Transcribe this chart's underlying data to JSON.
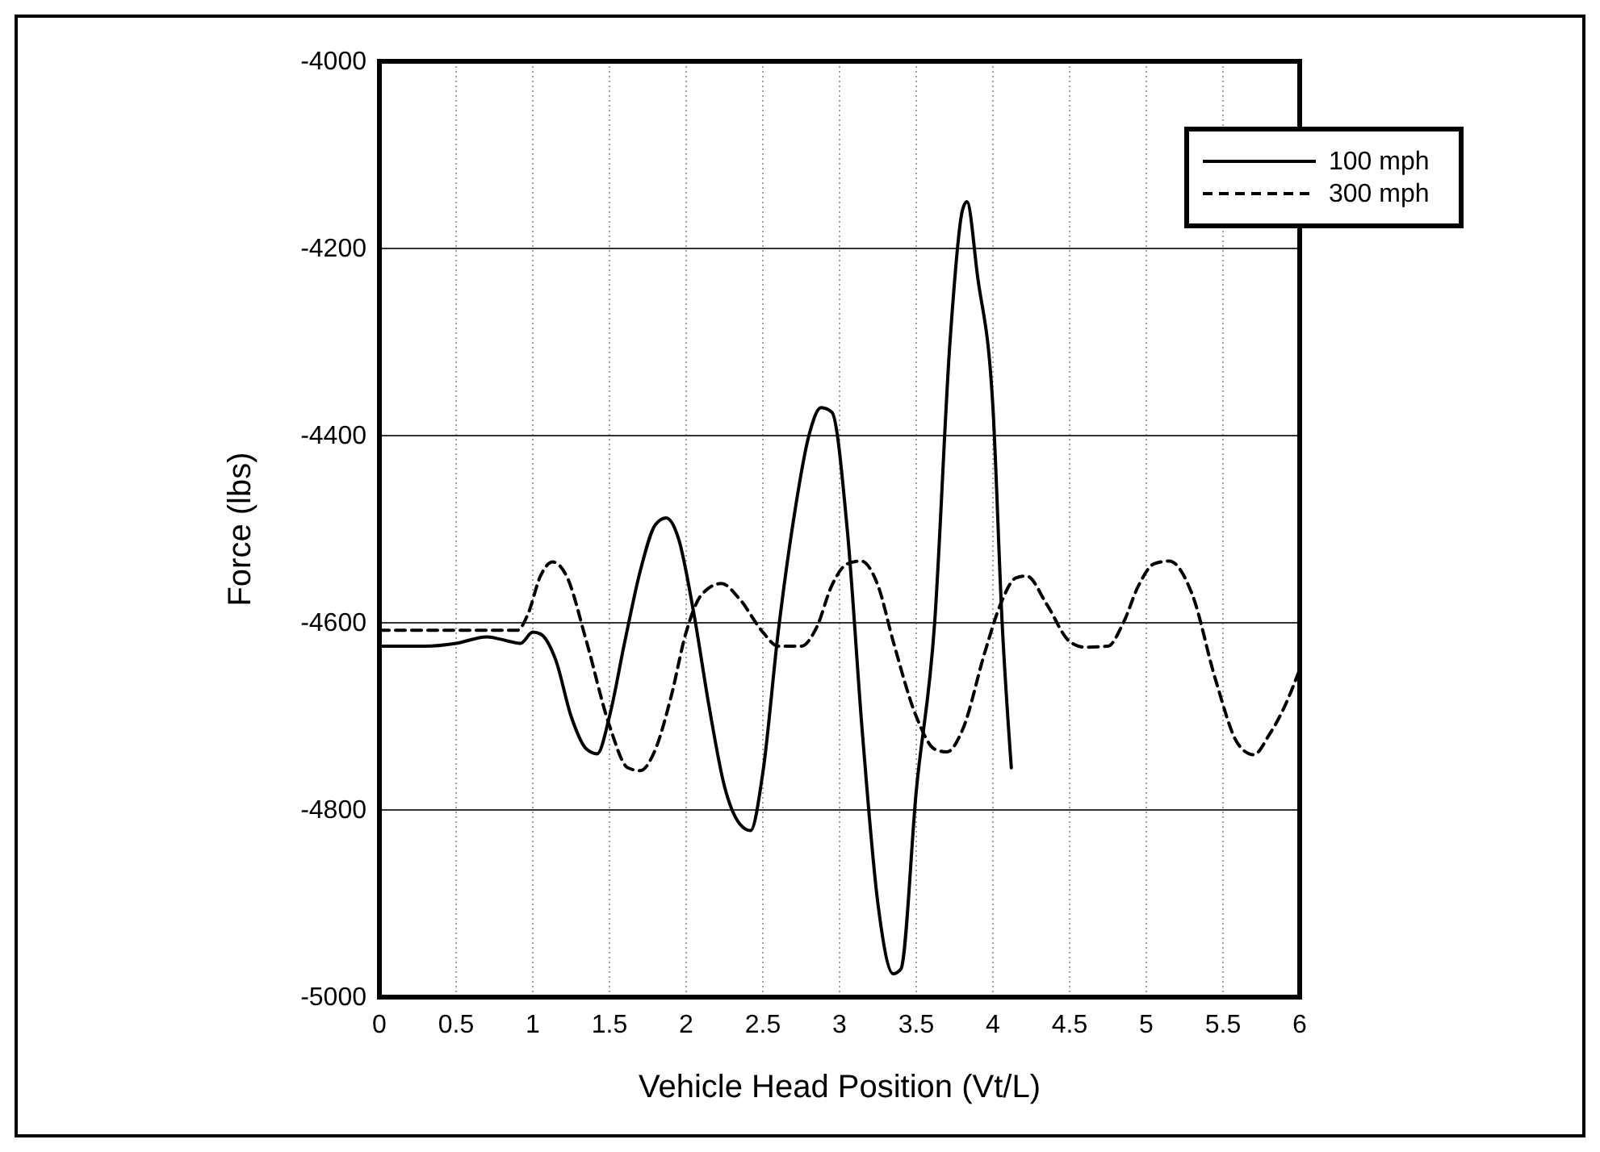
{
  "chart_data": {
    "type": "line",
    "xlabel": "Vehicle Head Position (Vt/L)",
    "ylabel": "Force (lbs)",
    "xlim": [
      0,
      6
    ],
    "ylim": [
      -5000,
      -4000
    ],
    "xticks": [
      0,
      0.5,
      1,
      1.5,
      2,
      2.5,
      3,
      3.5,
      4,
      4.5,
      5,
      5.5,
      6
    ],
    "yticks": [
      -5000,
      -4800,
      -4600,
      -4400,
      -4200,
      -4000
    ],
    "grid": true,
    "legend": "top right",
    "marker": "none",
    "series": [
      {
        "name": "100 mph",
        "color": "#000000",
        "line_style": "solid",
        "x": [
          0,
          0.3,
          0.5,
          0.7,
          0.85,
          0.92,
          1.0,
          1.05,
          1.15,
          1.25,
          1.35,
          1.42,
          1.5,
          1.6,
          1.7,
          1.8,
          1.87,
          1.95,
          2.05,
          2.15,
          2.25,
          2.35,
          2.42,
          2.5,
          2.6,
          2.7,
          2.8,
          2.88,
          2.95,
          3.05,
          3.15,
          3.25,
          3.35,
          3.4,
          3.5,
          3.62,
          3.72,
          3.8,
          3.83,
          3.9,
          4.0,
          4.06,
          4.12
        ],
        "values": [
          -4625,
          -4625,
          -4622,
          -4615,
          -4620,
          -4622,
          -4610,
          -4612,
          -4640,
          -4700,
          -4735,
          -4740,
          -4700,
          -4620,
          -4545,
          -4495,
          -4488,
          -4510,
          -4590,
          -4690,
          -4775,
          -4815,
          -4822,
          -4760,
          -4610,
          -4490,
          -4400,
          -4370,
          -4375,
          -4500,
          -4720,
          -4900,
          -4975,
          -4970,
          -4780,
          -4600,
          -4300,
          -4160,
          -4150,
          -4230,
          -4370,
          -4600,
          -4755
        ]
      },
      {
        "name": "300 mph",
        "color": "#000000",
        "line_style": "dashed",
        "x": [
          0,
          0.5,
          0.9,
          0.97,
          1.05,
          1.13,
          1.22,
          1.35,
          1.5,
          1.62,
          1.7,
          1.8,
          1.9,
          2.0,
          2.1,
          2.23,
          2.35,
          2.5,
          2.6,
          2.75,
          2.85,
          2.95,
          3.05,
          3.14,
          3.25,
          3.35,
          3.5,
          3.62,
          3.7,
          3.8,
          3.95,
          4.05,
          4.15,
          4.22,
          4.35,
          4.5,
          4.6,
          4.75,
          4.85,
          4.95,
          5.05,
          5.15,
          5.3,
          5.45,
          5.6,
          5.7,
          5.8,
          5.9,
          6.0
        ],
        "values": [
          -4608,
          -4608,
          -4608,
          -4590,
          -4550,
          -4535,
          -4550,
          -4620,
          -4710,
          -4755,
          -4758,
          -4735,
          -4680,
          -4610,
          -4570,
          -4558,
          -4575,
          -4610,
          -4625,
          -4625,
          -4605,
          -4560,
          -4537,
          -4534,
          -4560,
          -4620,
          -4700,
          -4735,
          -4738,
          -4715,
          -4630,
          -4580,
          -4552,
          -4550,
          -4580,
          -4620,
          -4626,
          -4625,
          -4600,
          -4560,
          -4537,
          -4534,
          -4570,
          -4660,
          -4730,
          -4741,
          -4720,
          -4690,
          -4650
        ]
      }
    ]
  }
}
